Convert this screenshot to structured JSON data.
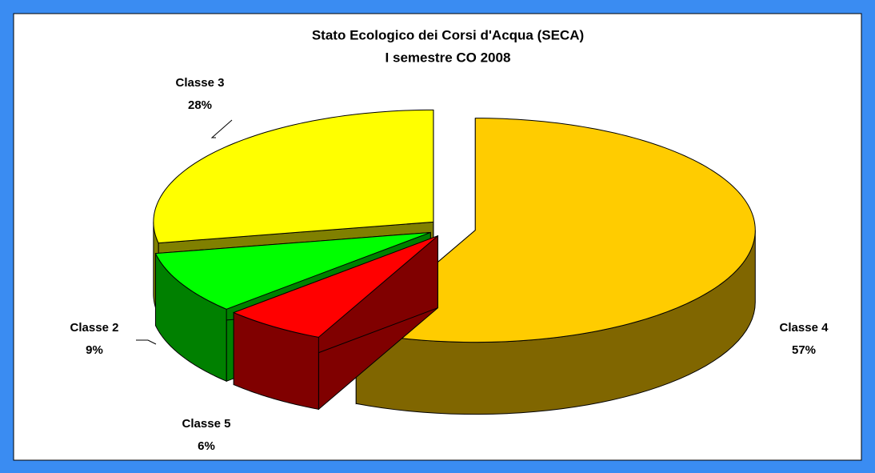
{
  "chart_data": {
    "type": "pie",
    "title": "Stato Ecologico dei Corsi d'Acqua (SECA)",
    "subtitle": "I semestre CO 2008",
    "categories": [
      "Classe 4",
      "Classe 5",
      "Classe 2",
      "Classe 3"
    ],
    "values": [
      57,
      6,
      9,
      28
    ],
    "value_labels": [
      "57%",
      "6%",
      "9%",
      "28%"
    ],
    "colors": [
      "#ffcc00",
      "#ff0000",
      "#00ff00",
      "#ffff00"
    ]
  }
}
